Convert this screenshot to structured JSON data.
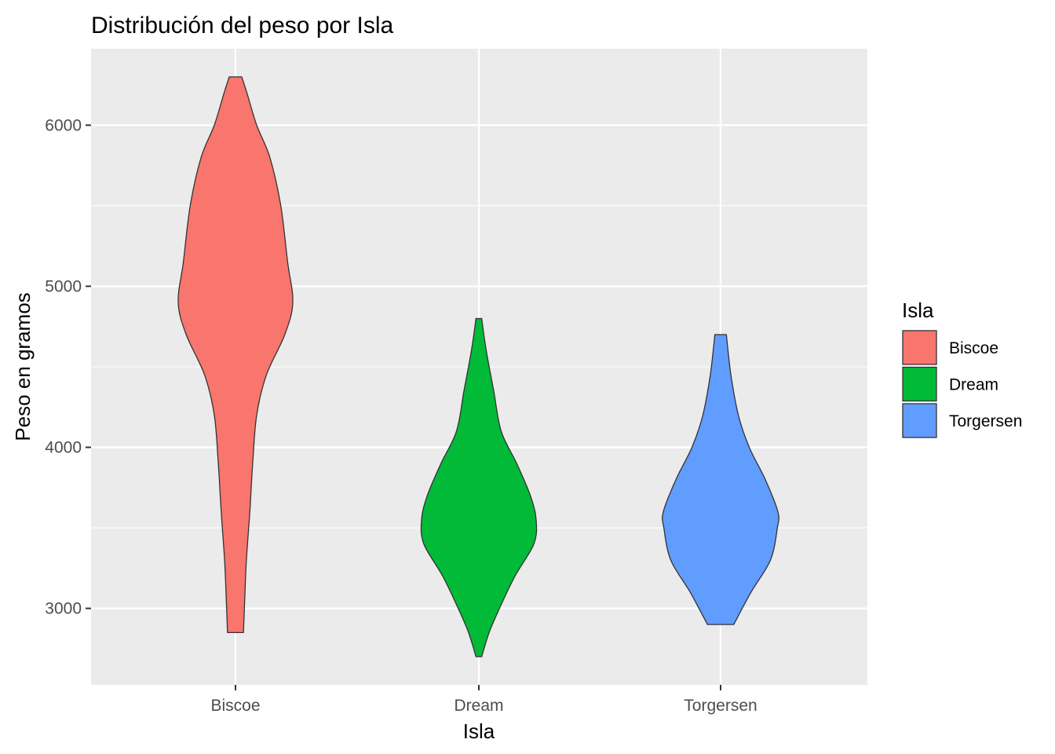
{
  "chart_data": {
    "type": "violin",
    "title": "Distribución del peso por Isla",
    "xlabel": "Isla",
    "ylabel": "Peso en gramos",
    "categories": [
      "Biscoe",
      "Dream",
      "Torgersen"
    ],
    "ylim": [
      2525,
      6475
    ],
    "yticks": [
      3000,
      4000,
      5000,
      6000
    ],
    "grid": true,
    "legend": {
      "title": "Isla",
      "position": "right",
      "entries": [
        "Biscoe",
        "Dream",
        "Torgersen"
      ]
    },
    "colors": {
      "Biscoe": "#F8766D",
      "Dream": "#00BA38",
      "Torgersen": "#619CFF",
      "panel": "#EBEBEB",
      "grid": "#FFFFFF",
      "outline": "#333333"
    },
    "series": [
      {
        "name": "Biscoe",
        "min": 2850,
        "max": 6300,
        "profile": [
          [
            2850,
            0.14
          ],
          [
            3050,
            0.16
          ],
          [
            3300,
            0.19
          ],
          [
            3600,
            0.25
          ],
          [
            3900,
            0.3
          ],
          [
            4200,
            0.37
          ],
          [
            4450,
            0.54
          ],
          [
            4700,
            0.86
          ],
          [
            4900,
            1.0
          ],
          [
            5150,
            0.91
          ],
          [
            5500,
            0.79
          ],
          [
            5800,
            0.6
          ],
          [
            6000,
            0.37
          ],
          [
            6200,
            0.2
          ],
          [
            6300,
            0.11
          ]
        ]
      },
      {
        "name": "Dream",
        "min": 2700,
        "max": 4800,
        "profile": [
          [
            2700,
            0.05
          ],
          [
            2850,
            0.18
          ],
          [
            3000,
            0.36
          ],
          [
            3200,
            0.63
          ],
          [
            3400,
            0.96
          ],
          [
            3550,
            1.0
          ],
          [
            3700,
            0.9
          ],
          [
            3900,
            0.66
          ],
          [
            4100,
            0.39
          ],
          [
            4350,
            0.26
          ],
          [
            4600,
            0.13
          ],
          [
            4800,
            0.05
          ]
        ]
      },
      {
        "name": "Torgersen",
        "min": 2900,
        "max": 4700,
        "profile": [
          [
            2900,
            0.23
          ],
          [
            3100,
            0.53
          ],
          [
            3300,
            0.87
          ],
          [
            3500,
            0.99
          ],
          [
            3600,
            1.0
          ],
          [
            3800,
            0.78
          ],
          [
            4000,
            0.5
          ],
          [
            4200,
            0.31
          ],
          [
            4450,
            0.18
          ],
          [
            4700,
            0.1
          ]
        ]
      }
    ]
  }
}
